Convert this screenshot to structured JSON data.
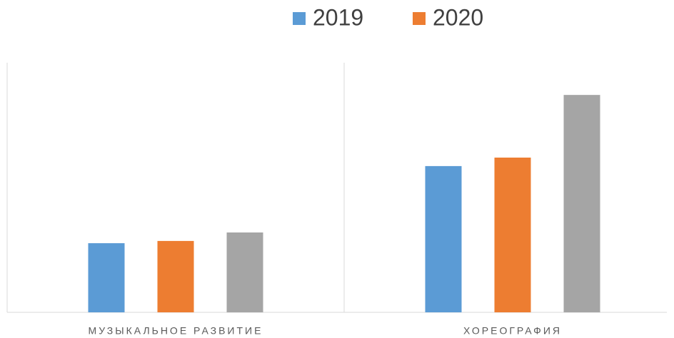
{
  "chart_data": {
    "type": "bar",
    "categories": [
      "МУЗЫКАЛЬНОЕ РАЗВИТИЕ",
      "ХОРЕОГРАФИЯ"
    ],
    "series": [
      {
        "name": "2019",
        "color": "#5b9bd5",
        "values": [
          27.7,
          58.6
        ]
      },
      {
        "name": "2020",
        "color": "#ed7d31",
        "values": [
          28.6,
          62
        ]
      },
      {
        "color": "#a5a5a5",
        "values": [
          32,
          87.1
        ]
      }
    ],
    "ylim": [
      0,
      100
    ]
  }
}
